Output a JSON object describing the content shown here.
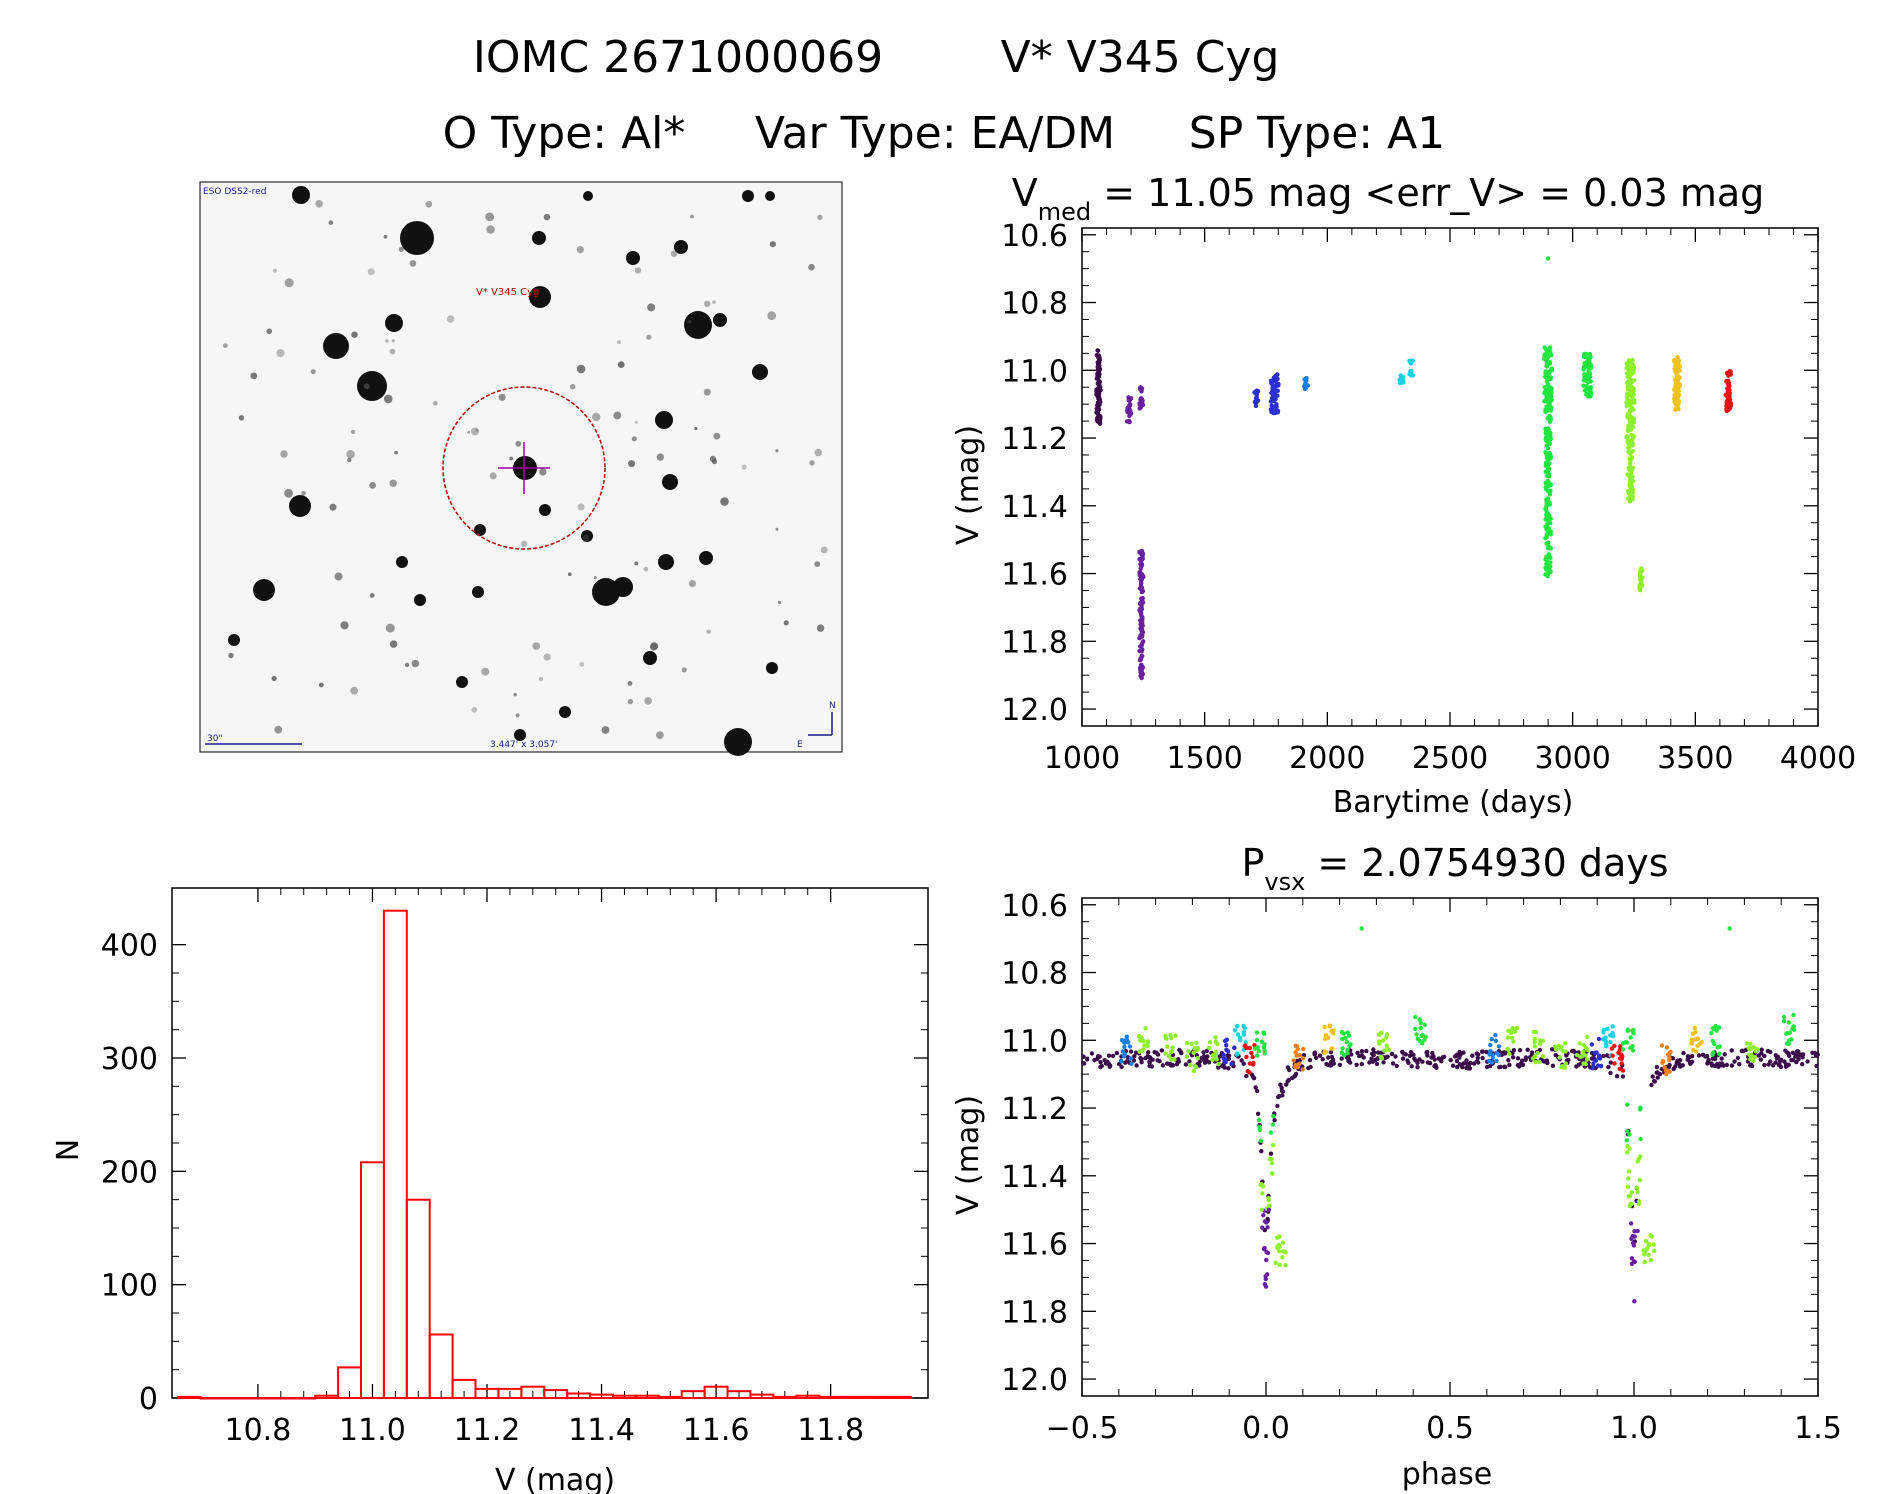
{
  "header": {
    "line1_id": "IOMC 2671000069",
    "line1_name": "V* V345 Cyg",
    "line2_otype": "O Type: Al*",
    "line2_vartype": "Var Type: EA/DM",
    "line2_sptype": "SP Type: A1"
  },
  "finder": {
    "survey": "ESO DSS2-red",
    "target_label": "V* V345 Cyg",
    "scale_label": "30\"",
    "fov_label": "3.447' x 3.057'",
    "north": "N",
    "east": "E"
  },
  "colors": {
    "hist": "#ff0000",
    "lc_palette": [
      "#3a0a4a",
      "#6a1fa0",
      "#2a2fd0",
      "#1a7ee8",
      "#19d0e0",
      "#22e640",
      "#8df02a",
      "#f0c01c",
      "#f08010",
      "#ee1010"
    ]
  },
  "chart_data": [
    {
      "type": "scatter",
      "id": "light_curve",
      "title_prefix": "V",
      "title_sub": "med",
      "title_rest": " = 11.05 mag <err_V> = 0.03 mag",
      "xlabel": "Barytime (days)",
      "ylabel": "V (mag)",
      "xlim": [
        1000,
        4000
      ],
      "ylim": [
        12.05,
        10.58
      ],
      "xticks": [
        1000,
        1500,
        2000,
        2500,
        3000,
        3500,
        4000
      ],
      "xtick_labels": [
        "1000",
        "1500",
        "2000",
        "2500",
        "3000",
        "3500",
        "4000"
      ],
      "yticks": [
        10.6,
        10.8,
        11.0,
        11.2,
        11.4,
        11.6,
        11.8,
        12.0
      ],
      "ytick_labels": [
        "10.6",
        "10.8",
        "11.0",
        "11.2",
        "11.4",
        "11.6",
        "11.8",
        "12.0"
      ],
      "groups": [
        {
          "name": "epoch1",
          "color_index": 0,
          "x": [
            1065,
            1068,
            1070
          ],
          "vmin": 10.94,
          "vmax": 11.16
        },
        {
          "name": "epoch2",
          "color_index": 1,
          "x": [
            1190,
            1195
          ],
          "vmin": 11.08,
          "vmax": 11.16
        },
        {
          "name": "epoch3",
          "color_index": 1,
          "x": [
            1240,
            1244
          ],
          "vmin": 11.05,
          "vmax": 11.12
        },
        {
          "name": "eclipse3",
          "color_index": 1,
          "x": [
            1240,
            1244
          ],
          "vmin": 11.53,
          "vmax": 11.91
        },
        {
          "name": "epoch4",
          "color_index": 2,
          "x": [
            1708,
            1712
          ],
          "vmin": 11.06,
          "vmax": 11.11
        },
        {
          "name": "epoch5",
          "color_index": 2,
          "x": [
            1775,
            1785,
            1795
          ],
          "vmin": 11.01,
          "vmax": 11.13
        },
        {
          "name": "epoch6",
          "color_index": 3,
          "x": [
            1910,
            1915
          ],
          "vmin": 11.02,
          "vmax": 11.06
        },
        {
          "name": "epoch7",
          "color_index": 4,
          "x": [
            2300,
            2305
          ],
          "vmin": 11.01,
          "vmax": 11.04
        },
        {
          "name": "epoch8",
          "color_index": 4,
          "x": [
            2340,
            2345
          ],
          "vmin": 10.97,
          "vmax": 11.02
        },
        {
          "name": "epoch9",
          "color_index": 5,
          "x": [
            2890,
            2900,
            2910
          ],
          "vmin": 10.93,
          "vmax": 11.12
        },
        {
          "name": "eclipse9",
          "color_index": 5,
          "x": [
            2895,
            2905
          ],
          "vmin": 11.12,
          "vmax": 11.61
        },
        {
          "name": "epoch10",
          "color_index": 5,
          "x": [
            3050,
            3060,
            3070
          ],
          "vmin": 10.95,
          "vmax": 11.08
        },
        {
          "name": "epoch11",
          "color_index": 6,
          "x": [
            3225,
            3235,
            3245
          ],
          "vmin": 10.97,
          "vmax": 11.2
        },
        {
          "name": "eclipse11",
          "color_index": 6,
          "x": [
            3230,
            3240
          ],
          "vmin": 11.2,
          "vmax": 11.39
        },
        {
          "name": "eclipse11b",
          "color_index": 6,
          "x": [
            3275,
            3280
          ],
          "vmin": 11.58,
          "vmax": 11.65
        },
        {
          "name": "epoch12",
          "color_index": 7,
          "x": [
            3420,
            3425,
            3430
          ],
          "vmin": 10.96,
          "vmax": 11.12
        },
        {
          "name": "epoch13",
          "color_index": 9,
          "x": [
            3630,
            3635,
            3640
          ],
          "vmin": 11.0,
          "vmax": 11.12
        }
      ],
      "outliers": [
        {
          "x": 2900,
          "v": 10.67,
          "color_index": 5
        }
      ]
    },
    {
      "type": "bar",
      "id": "histogram",
      "xlabel": "V (mag)",
      "ylabel": "N",
      "xlim": [
        10.65,
        11.97
      ],
      "ylim": [
        0,
        450
      ],
      "xticks": [
        10.8,
        11.0,
        11.2,
        11.4,
        11.6,
        11.8
      ],
      "xtick_labels": [
        "10.8",
        "11.0",
        "11.2",
        "11.4",
        "11.6",
        "11.8"
      ],
      "yticks": [
        0,
        100,
        200,
        300,
        400
      ],
      "ytick_labels": [
        "0",
        "100",
        "200",
        "300",
        "400"
      ],
      "bin_width": 0.04,
      "bin_starts": [
        10.66,
        10.7,
        10.74,
        10.78,
        10.82,
        10.86,
        10.9,
        10.94,
        10.98,
        11.02,
        11.06,
        11.1,
        11.14,
        11.18,
        11.22,
        11.26,
        11.3,
        11.34,
        11.38,
        11.42,
        11.46,
        11.5,
        11.54,
        11.58,
        11.62,
        11.66,
        11.7,
        11.74,
        11.78,
        11.82,
        11.86,
        11.9
      ],
      "values": [
        1,
        0,
        0,
        0,
        0,
        0,
        2,
        27,
        208,
        430,
        175,
        56,
        16,
        8,
        8,
        10,
        7,
        4,
        3,
        2,
        2,
        1,
        6,
        10,
        6,
        3,
        1,
        2,
        1,
        1,
        1,
        1
      ]
    },
    {
      "type": "scatter",
      "id": "phased_curve",
      "title_prefix": "P",
      "title_sub": "vsx",
      "title_rest": " = 2.0754930 days",
      "xlabel": "phase",
      "ylabel": "V (mag)",
      "xlim": [
        -0.5,
        1.5
      ],
      "ylim": [
        12.05,
        10.58
      ],
      "xticks": [
        -0.5,
        0.0,
        0.5,
        1.0,
        1.5
      ],
      "xtick_labels": [
        "−0.5",
        "0.0",
        "0.5",
        "1.0",
        "1.5"
      ],
      "yticks": [
        10.6,
        10.8,
        11.0,
        11.2,
        11.4,
        11.6,
        11.8,
        12.0
      ],
      "ytick_labels": [
        "10.6",
        "10.8",
        "11.0",
        "11.2",
        "11.4",
        "11.6",
        "11.8",
        "12.0"
      ],
      "profile": [
        [
          -0.5,
          11.06
        ],
        [
          -0.2,
          11.05
        ],
        [
          -0.08,
          11.06
        ],
        [
          -0.03,
          11.1
        ],
        [
          -0.015,
          11.28
        ],
        [
          0.0,
          11.62
        ],
        [
          0.015,
          11.28
        ],
        [
          0.03,
          11.18
        ],
        [
          0.06,
          11.1
        ],
        [
          0.1,
          11.06
        ],
        [
          0.3,
          11.05
        ],
        [
          0.5,
          11.06
        ]
      ],
      "clumps": [
        {
          "phase": -0.38,
          "v": 11.03,
          "color_index": 3
        },
        {
          "phase": -0.33,
          "v": 11.0,
          "color_index": 6
        },
        {
          "phase": -0.26,
          "v": 11.02,
          "color_index": 6
        },
        {
          "phase": -0.2,
          "v": 11.05,
          "color_index": 6
        },
        {
          "phase": -0.14,
          "v": 11.03,
          "color_index": 6
        },
        {
          "phase": -0.1,
          "v": 11.04,
          "color_index": 2
        },
        {
          "phase": -0.07,
          "v": 11.0,
          "color_index": 4
        },
        {
          "phase": -0.045,
          "v": 11.05,
          "color_index": 9
        },
        {
          "phase": -0.015,
          "v": 11.01,
          "color_index": 5
        },
        {
          "phase": 0.04,
          "v": 11.62,
          "color_index": 6
        },
        {
          "phase": 0.09,
          "v": 11.06,
          "color_index": 8
        },
        {
          "phase": 0.17,
          "v": 11.0,
          "color_index": 7
        },
        {
          "phase": 0.22,
          "v": 11.0,
          "color_index": 5
        },
        {
          "phase": 0.32,
          "v": 11.02,
          "color_index": 6
        },
        {
          "phase": 0.42,
          "v": 10.97,
          "color_index": 5
        }
      ],
      "outliers": [
        {
          "phase": 0.26,
          "v": 10.67,
          "color_index": 5
        }
      ]
    }
  ]
}
